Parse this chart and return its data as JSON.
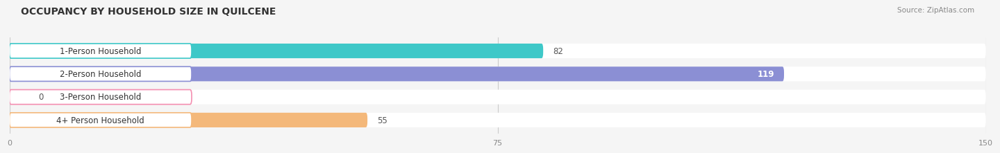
{
  "title": "OCCUPANCY BY HOUSEHOLD SIZE IN QUILCENE",
  "source": "Source: ZipAtlas.com",
  "categories": [
    "1-Person Household",
    "2-Person Household",
    "3-Person Household",
    "4+ Person Household"
  ],
  "values": [
    82,
    119,
    0,
    55
  ],
  "bar_colors": [
    "#3ec8c8",
    "#8b8fd4",
    "#f48fb1",
    "#f4b87a"
  ],
  "xlim": [
    0,
    150
  ],
  "xticks": [
    0,
    75,
    150
  ],
  "background_color": "#f5f5f5",
  "bar_bg_color": "#e0e0e0",
  "row_bg_color": "#ffffff",
  "title_fontsize": 10,
  "source_fontsize": 7.5,
  "label_fontsize": 8.5,
  "value_fontsize": 8.5
}
